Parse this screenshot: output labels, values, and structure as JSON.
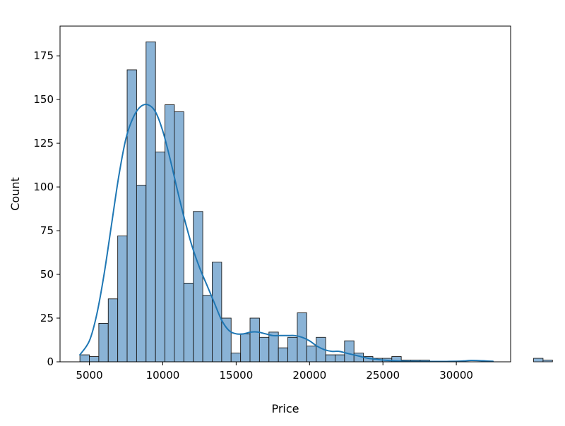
{
  "chart_data": {
    "type": "bar",
    "title": "",
    "xlabel": "Price",
    "ylabel": "Count",
    "xlim": [
      3000,
      33700
    ],
    "ylim": [
      0,
      192
    ],
    "grid": false,
    "xticks": [
      5000,
      10000,
      15000,
      20000,
      25000,
      30000
    ],
    "yticks": [
      0,
      25,
      50,
      75,
      100,
      125,
      150,
      175
    ],
    "bar_color": "#8AB3D6",
    "bar_edge_color": "#1a1a1a",
    "kde_color": "#1f77b4",
    "bins": {
      "start": 4353,
      "width": 644,
      "counts": [
        4,
        3,
        22,
        36,
        72,
        167,
        101,
        183,
        120,
        147,
        143,
        45,
        86,
        38,
        57,
        25,
        5,
        16,
        25,
        14,
        17,
        8,
        14,
        28,
        9,
        14,
        4,
        4,
        12,
        5,
        3,
        2,
        2,
        3,
        1,
        1,
        1,
        0,
        0,
        0,
        0,
        0,
        0,
        0,
        0,
        0,
        0,
        0,
        2,
        1
      ]
    },
    "kde": {
      "x": [
        4353,
        5000,
        5500,
        6000,
        6500,
        7000,
        7500,
        8000,
        8500,
        9000,
        9500,
        10000,
        10500,
        11000,
        11500,
        12000,
        12500,
        13000,
        13500,
        14000,
        14500,
        15000,
        15500,
        16000,
        16500,
        17000,
        17500,
        18000,
        18500,
        19000,
        19500,
        20000,
        20500,
        21000,
        21500,
        22000,
        22500,
        23000,
        23500,
        24000,
        24500,
        25000,
        26000,
        27000,
        28000,
        29000,
        30000,
        30500,
        31000,
        31500,
        32000,
        32500
      ],
      "y": [
        4,
        12,
        27,
        50,
        78,
        106,
        128,
        140,
        146,
        147,
        143,
        132,
        116,
        98,
        81,
        66,
        54,
        44,
        34,
        24,
        18,
        16,
        16,
        17,
        17,
        16,
        15,
        15,
        15,
        15,
        14,
        12,
        9,
        7,
        6,
        6,
        5,
        4,
        3,
        2,
        1.5,
        1,
        0.5,
        0.3,
        0.2,
        0.2,
        0.3,
        0.5,
        0.8,
        0.7,
        0.5,
        0.3
      ]
    }
  }
}
